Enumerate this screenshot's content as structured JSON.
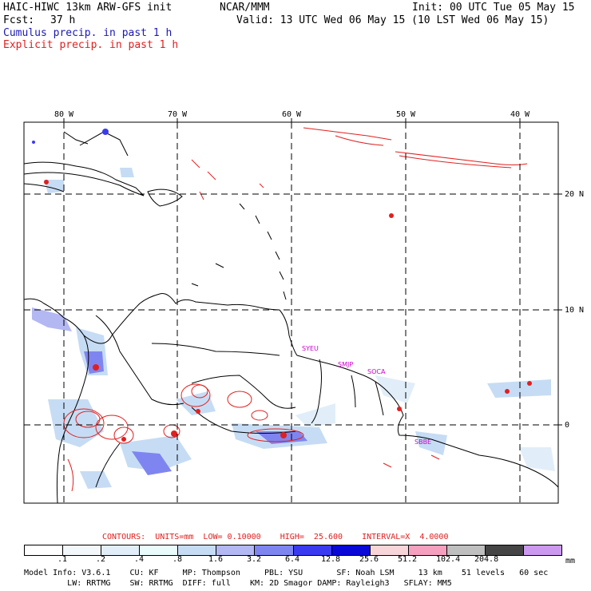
{
  "header": {
    "model_title": "HAIC-HIWC 13km ARW-GFS init",
    "org": "NCAR/MMM",
    "init": "Init: 00 UTC Tue 05 May 15",
    "fcst_label": "Fcst:",
    "fcst_value": "37 h",
    "valid": "Valid: 13 UTC Wed 06 May 15 (10 LST Wed 06 May 15)",
    "cumulus_legend": "Cumulus precip. in past 1 h",
    "explicit_legend": "Explicit precip. in past 1 h",
    "cumulus_color": "#1a1ab3",
    "explicit_color": "#e02020"
  },
  "map": {
    "lon_labels": [
      "80 W",
      "70 W",
      "60 W",
      "50 W",
      "40 W"
    ],
    "lat_labels": [
      "20 N",
      "10 N",
      "0"
    ],
    "station_labels": [
      "SYEU",
      "SMJP",
      "SOCA",
      "SBBE"
    ],
    "station_color": "#cc00cc"
  },
  "contours": {
    "text": "CONTOURS:  UNITS=mm  LOW= 0.10000    HIGH=  25.600    INTERVAL=X  4.0000",
    "color": "#e02020"
  },
  "colorbar": {
    "labels": [
      ".1",
      ".2",
      ".4",
      ".8",
      "1.6",
      "3.2",
      "6.4",
      "12.8",
      "25.6",
      "51.2",
      "102.4",
      "204.8"
    ],
    "unit": "mm",
    "colors": [
      "#ffffff",
      "#f2f7fc",
      "#e1eef9",
      "#e9fbfb",
      "#c6dcf4",
      "#b3b8f3",
      "#7f85f0",
      "#3a3bf0",
      "#0808d8",
      "#f7d5d8",
      "#f5a0bf",
      "#bfbfbf",
      "#454545",
      "#cc99f0"
    ]
  },
  "footer": {
    "line1": "Model Info: V3.6.1    CU: KF     MP: Thompson     PBL: YSU       SF: Noah LSM     13 km    51 levels   60 sec",
    "line2": "         LW: RRTMG    SW: RRTMG  DIFF: full    KM: 2D Smagor DAMP: Rayleigh3   SFLAY: MM5"
  }
}
